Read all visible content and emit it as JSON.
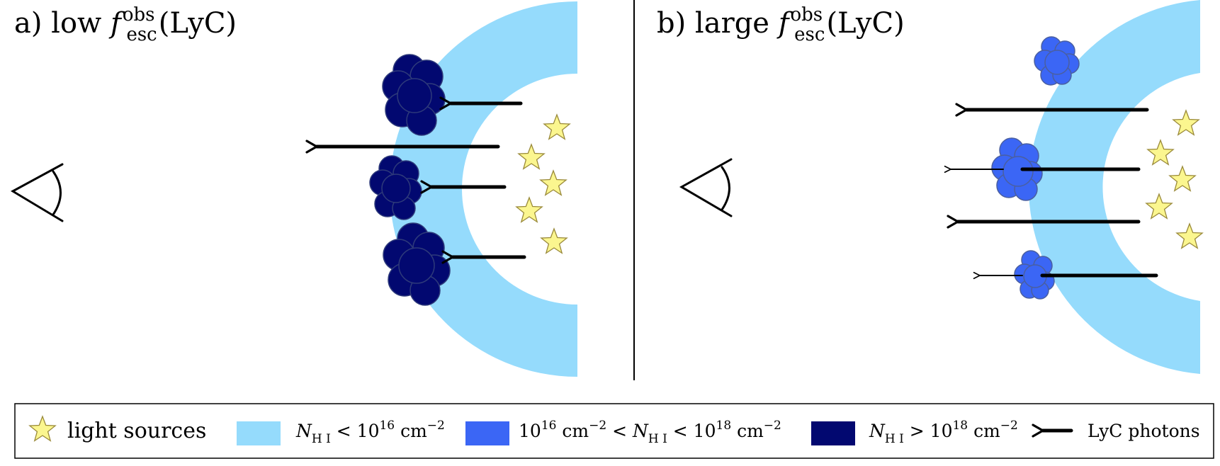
{
  "panel_a": {
    "prefix": "a) low ",
    "symbol": "f",
    "superscript": "obs",
    "subscript": "esc",
    "suffix": "(LyC)"
  },
  "panel_b": {
    "prefix": "b) large ",
    "symbol": "f",
    "superscript": "obs",
    "subscript": "esc",
    "suffix": "(LyC)"
  },
  "legend": {
    "light_sources": "light sources",
    "low_column": {
      "n": "N",
      "sub": "H I",
      "rel": " < 10",
      "exp": "16",
      "unit": " cm",
      "unit_exp": "−2"
    },
    "mid_column": {
      "lead": "10",
      "lead_exp": "16",
      "lead_unit": " cm",
      "lead_unit_exp": "−2",
      "rel1": " < ",
      "n": "N",
      "sub": "H I",
      "rel2": " < 10",
      "exp": "18",
      "unit": " cm",
      "unit_exp": "−2"
    },
    "high_column": {
      "n": "N",
      "sub": "H I",
      "rel": " > 10",
      "exp": "18",
      "unit": " cm",
      "unit_exp": "−2"
    },
    "lyc_photons": "LyC photons"
  },
  "colors": {
    "shell": "#95dbfc",
    "cloud_intermediate": "#3b66f5",
    "cloud_dense": "#020870",
    "star_fill": "#fbf68f",
    "star_stroke": "#9a8a3a",
    "ink": "#000000"
  },
  "icons": [
    "eye-icon",
    "star-icon",
    "cloud-icon",
    "arrow-left-icon"
  ]
}
